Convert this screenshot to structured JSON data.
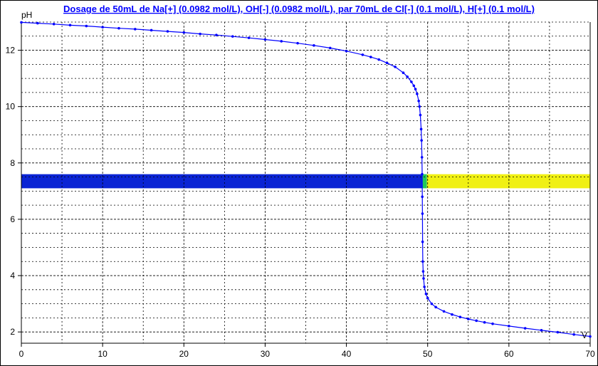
{
  "chart_data": {
    "type": "line",
    "title": "Dosage de 50mL de Na[+] (0.0982 mol/L), OH[-] (0.0982 mol/L),  par 70mL  de Cl[-] (0.1 mol/L), H[+] (0.1 mol/L)",
    "xlabel": "V",
    "ylabel": "pH",
    "xlim": [
      0,
      70
    ],
    "ylim": [
      1.6,
      13.0
    ],
    "x_ticks": [
      0,
      10,
      20,
      30,
      40,
      50,
      60,
      70
    ],
    "y_ticks": [
      2,
      4,
      6,
      8,
      10,
      12
    ],
    "grid": true,
    "series": [
      {
        "color": "#0000ff",
        "marker": "dot",
        "points": [
          [
            0,
            12.99
          ],
          [
            2,
            12.96
          ],
          [
            4,
            12.93
          ],
          [
            6,
            12.89
          ],
          [
            8,
            12.86
          ],
          [
            10,
            12.82
          ],
          [
            12,
            12.78
          ],
          [
            14,
            12.75
          ],
          [
            16,
            12.71
          ],
          [
            18,
            12.67
          ],
          [
            20,
            12.63
          ],
          [
            22,
            12.58
          ],
          [
            24,
            12.54
          ],
          [
            26,
            12.49
          ],
          [
            28,
            12.44
          ],
          [
            30,
            12.38
          ],
          [
            32,
            12.32
          ],
          [
            34,
            12.25
          ],
          [
            36,
            12.17
          ],
          [
            38,
            12.08
          ],
          [
            40,
            11.97
          ],
          [
            42,
            11.84
          ],
          [
            43,
            11.76
          ],
          [
            44,
            11.67
          ],
          [
            45,
            11.55
          ],
          [
            46,
            11.41
          ],
          [
            47,
            11.2
          ],
          [
            47.5,
            11.06
          ],
          [
            48,
            10.88
          ],
          [
            48.3,
            10.74
          ],
          [
            48.5,
            10.62
          ],
          [
            48.7,
            10.45
          ],
          [
            48.9,
            10.2
          ],
          [
            49.0,
            10.0
          ],
          [
            49.1,
            9.7
          ],
          [
            49.2,
            9.2
          ],
          [
            49.25,
            8.8
          ],
          [
            49.3,
            8.2
          ],
          [
            49.32,
            7.6
          ],
          [
            49.34,
            6.8
          ],
          [
            49.36,
            6.2
          ],
          [
            49.38,
            5.2
          ],
          [
            49.4,
            4.5
          ],
          [
            49.45,
            4.15
          ],
          [
            49.5,
            3.9
          ],
          [
            49.6,
            3.6
          ],
          [
            49.8,
            3.35
          ],
          [
            50,
            3.2
          ],
          [
            50.5,
            3.0
          ],
          [
            51,
            2.88
          ],
          [
            52,
            2.73
          ],
          [
            53,
            2.62
          ],
          [
            54,
            2.53
          ],
          [
            55,
            2.46
          ],
          [
            56,
            2.4
          ],
          [
            57,
            2.34
          ],
          [
            58,
            2.29
          ],
          [
            60,
            2.21
          ],
          [
            62,
            2.13
          ],
          [
            64,
            2.06
          ],
          [
            66,
            1.99
          ],
          [
            68,
            1.91
          ],
          [
            70,
            1.84
          ]
        ]
      }
    ],
    "indicator_band": {
      "ymin": 7.1,
      "ymax": 7.6,
      "segments": [
        {
          "x_start": 0,
          "x_end": 49.3,
          "color": "#0a24d4"
        },
        {
          "x_start": 49.3,
          "x_end": 49.9,
          "color": "#20c85a"
        },
        {
          "x_start": 49.9,
          "x_end": 70,
          "color": "#f0f014"
        }
      ]
    }
  }
}
